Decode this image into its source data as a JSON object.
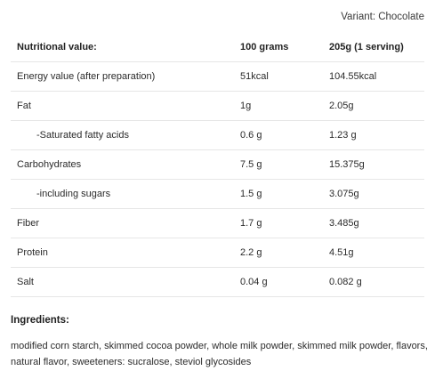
{
  "variant": "Variant: Chocolate",
  "table": {
    "headers": [
      "Nutritional value:",
      "100 grams",
      "205g (1 serving)"
    ],
    "rows": [
      {
        "name": "Energy value (after preparation)",
        "per100": "51kcal",
        "serving": "104.55kcal"
      },
      {
        "name": "Fat",
        "per100": "1g",
        "serving": "2.05g"
      },
      {
        "name": "-Saturated fatty acids",
        "per100": "0.6 g",
        "serving": "1.23 g"
      },
      {
        "name": "Carbohydrates",
        "per100": "7.5 g",
        "serving": "15.375g"
      },
      {
        "name": "-including sugars",
        "per100": "1.5 g",
        "serving": "3.075g"
      },
      {
        "name": "Fiber",
        "per100": "1.7 g",
        "serving": "3.485g"
      },
      {
        "name": "Protein",
        "per100": "2.2 g",
        "serving": "4.51g"
      },
      {
        "name": "Salt",
        "per100": "0.04 g",
        "serving": "0.082 g"
      }
    ]
  },
  "ingredients": {
    "title": "Ingredients:",
    "text": "modified corn starch, skimmed cocoa powder, whole milk powder, skimmed milk powder, flavors, natural flavor, sweeteners: sucralose, steviol glycosides"
  }
}
